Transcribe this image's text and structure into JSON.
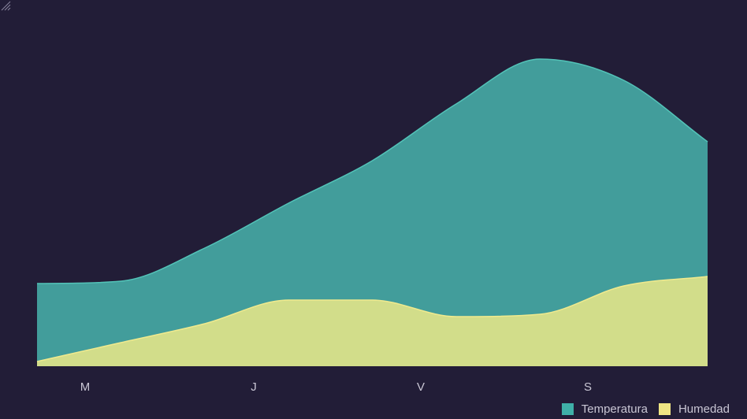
{
  "chart_data": {
    "type": "area",
    "stacked": true,
    "categories": [
      "M",
      "J",
      "V",
      "S"
    ],
    "x": [
      0,
      1,
      2,
      3,
      4,
      5,
      6,
      7,
      8
    ],
    "series": [
      {
        "name": "Humedad",
        "color": "#d2dd8a",
        "values": [
          2,
          10,
          18,
          28,
          28,
          21,
          22,
          34,
          38
        ]
      },
      {
        "name": "Temperatura",
        "color": "#429d9b",
        "values": [
          33,
          26,
          32,
          41,
          59,
          90,
          108,
          87,
          57
        ]
      }
    ],
    "ylim": [
      0,
      155
    ],
    "grid": false,
    "legend_position": "bottom-right",
    "title": "",
    "xlabel": "",
    "ylabel": ""
  },
  "legend": {
    "items": [
      {
        "label": "Temperatura",
        "color": "#3fb0a8"
      },
      {
        "label": "Humedad",
        "color": "#efe584"
      }
    ]
  }
}
